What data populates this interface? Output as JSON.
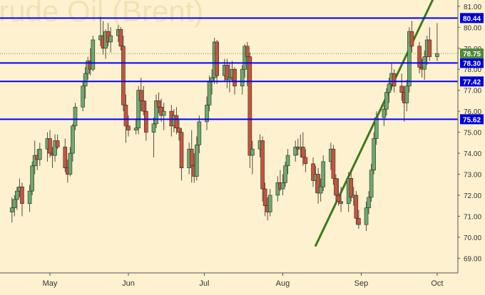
{
  "chart_data": {
    "type": "candlestick",
    "title": "Crude Oil (Brent)",
    "x_ticks": [
      "May",
      "Jun",
      "Jul",
      "Aug",
      "Sep",
      "Oct"
    ],
    "y_ticks": [
      "69.00",
      "70.00",
      "71.00",
      "72.00",
      "73.00",
      "74.00",
      "75.00",
      "76.00",
      "77.00",
      "78.00",
      "79.00",
      "80.00",
      "81.00"
    ],
    "ylim": [
      68.3,
      81.3
    ],
    "grid": false,
    "last_price": "78.75",
    "levels": [
      {
        "label": "80.44",
        "value": 80.44
      },
      {
        "label": "78.30",
        "value": 78.3
      },
      {
        "label": "77.42",
        "value": 77.42
      },
      {
        "label": "75.62",
        "value": 75.62
      }
    ],
    "trendlines": [
      {
        "from": [
          "Aug 14",
          69.6
        ],
        "to": [
          "Sep 30",
          81.5
        ]
      }
    ],
    "candles": [
      [
        "Apr 16",
        71.2,
        71.9,
        70.7,
        71.4
      ],
      [
        "Apr 17",
        71.4,
        72.0,
        71.0,
        71.8
      ],
      [
        "Apr 18",
        71.8,
        72.4,
        71.3,
        72.2
      ],
      [
        "Apr 19",
        72.2,
        72.8,
        71.9,
        72.4
      ],
      [
        "Apr 20",
        72.4,
        72.6,
        71.0,
        71.6
      ],
      [
        "Apr 23",
        71.6,
        72.5,
        71.2,
        72.2
      ],
      [
        "Apr 24",
        72.2,
        73.6,
        72.0,
        73.4
      ],
      [
        "Apr 25",
        73.4,
        74.6,
        73.0,
        73.9
      ],
      [
        "Apr 26",
        73.9,
        74.2,
        73.2,
        73.7
      ],
      [
        "Apr 27",
        73.7,
        74.5,
        73.4,
        74.2
      ],
      [
        "Apr 30",
        74.2,
        75.0,
        73.6,
        74.7
      ],
      [
        "May 1",
        74.7,
        75.1,
        73.8,
        74.0
      ],
      [
        "May 2",
        74.0,
        74.3,
        73.3,
        73.9
      ],
      [
        "May 3",
        73.9,
        74.9,
        73.6,
        74.6
      ],
      [
        "May 4",
        74.6,
        74.9,
        74.2,
        74.3
      ],
      [
        "May 7",
        74.3,
        74.7,
        73.1,
        73.3
      ],
      [
        "May 8",
        73.3,
        73.7,
        72.6,
        73.0
      ],
      [
        "May 9",
        73.0,
        74.3,
        72.9,
        74.0
      ],
      [
        "May 10",
        74.0,
        75.4,
        73.6,
        75.3
      ],
      [
        "May 11",
        75.3,
        76.4,
        75.1,
        76.2
      ],
      [
        "May 14",
        76.2,
        77.4,
        76.0,
        77.2
      ],
      [
        "May 15",
        77.2,
        78.1,
        76.6,
        77.8
      ],
      [
        "May 16",
        77.8,
        78.6,
        77.5,
        78.4
      ],
      [
        "May 17",
        78.4,
        79.0,
        77.7,
        78.0
      ],
      [
        "May 18",
        78.0,
        79.6,
        77.9,
        79.4
      ],
      [
        "May 21",
        79.4,
        80.5,
        79.1,
        79.6
      ],
      [
        "May 22",
        79.6,
        80.3,
        78.7,
        79.0
      ],
      [
        "May 23",
        79.0,
        79.9,
        78.5,
        79.8
      ],
      [
        "May 24",
        79.8,
        80.2,
        79.1,
        79.3
      ],
      [
        "May 25",
        79.3,
        80.0,
        78.8,
        79.6
      ],
      [
        "May 28",
        79.6,
        80.1,
        79.3,
        79.9
      ],
      [
        "May 29",
        79.9,
        80.0,
        78.9,
        79.1
      ],
      [
        "May 30",
        79.1,
        79.6,
        76.0,
        76.3
      ],
      [
        "May 31",
        76.3,
        76.8,
        74.5,
        75.3
      ],
      [
        "Jun 1",
        75.3,
        75.8,
        74.8,
        75.1
      ],
      [
        "Jun 4",
        75.1,
        75.6,
        74.9,
        75.2
      ],
      [
        "Jun 5",
        75.2,
        77.2,
        74.9,
        77.0
      ],
      [
        "Jun 6",
        77.0,
        77.6,
        76.0,
        76.5
      ],
      [
        "Jun 7",
        76.5,
        77.2,
        75.8,
        76.0
      ],
      [
        "Jun 8",
        76.0,
        76.5,
        74.6,
        75.0
      ],
      [
        "Jun 11",
        75.0,
        75.7,
        73.8,
        75.4
      ],
      [
        "Jun 12",
        75.4,
        76.8,
        75.2,
        76.5
      ],
      [
        "Jun 13",
        76.5,
        76.9,
        75.9,
        76.2
      ],
      [
        "Jun 14",
        76.2,
        76.6,
        75.5,
        75.8
      ],
      [
        "Jun 15",
        75.8,
        76.4,
        75.1,
        76.0
      ],
      [
        "Jun 18",
        76.0,
        76.3,
        74.8,
        75.3
      ],
      [
        "Jun 19",
        75.3,
        76.1,
        75.0,
        75.8
      ],
      [
        "Jun 20",
        75.8,
        76.2,
        74.9,
        75.2
      ],
      [
        "Jun 21",
        75.2,
        75.6,
        74.6,
        75.0
      ],
      [
        "Jun 22",
        75.0,
        75.2,
        72.7,
        73.3
      ],
      [
        "Jun 25",
        73.3,
        74.5,
        73.0,
        74.2
      ],
      [
        "Jun 26",
        74.2,
        75.1,
        72.6,
        73.4
      ],
      [
        "Jun 27",
        73.4,
        74.0,
        72.6,
        72.9
      ],
      [
        "Jun 28",
        72.9,
        74.8,
        72.7,
        74.4
      ],
      [
        "Jun 29",
        74.4,
        75.8,
        74.0,
        75.5
      ],
      [
        "Jul 2",
        75.5,
        76.7,
        75.1,
        76.3
      ],
      [
        "Jul 3",
        76.3,
        77.7,
        76.0,
        77.4
      ],
      [
        "Jul 4",
        77.4,
        78.0,
        76.8,
        77.6
      ],
      [
        "Jul 5",
        77.6,
        79.5,
        77.3,
        79.3
      ],
      [
        "Jul 6",
        79.3,
        79.4,
        77.3,
        77.7
      ],
      [
        "Jul 9",
        77.7,
        78.5,
        77.4,
        78.2
      ],
      [
        "Jul 10",
        78.2,
        78.5,
        77.1,
        77.5
      ],
      [
        "Jul 11",
        77.5,
        78.3,
        76.9,
        77.6
      ],
      [
        "Jul 12",
        77.6,
        78.4,
        77.4,
        78.0
      ],
      [
        "Jul 13",
        78.0,
        78.1,
        76.8,
        77.2
      ],
      [
        "Jul 16",
        77.2,
        78.2,
        76.8,
        78.0
      ],
      [
        "Jul 17",
        78.0,
        79.2,
        77.6,
        79.1
      ],
      [
        "Jul 18",
        79.1,
        79.3,
        77.2,
        78.6
      ],
      [
        "Jul 19",
        78.6,
        78.8,
        73.3,
        73.9
      ],
      [
        "Jul 20",
        73.9,
        74.6,
        73.0,
        74.2
      ],
      [
        "Jul 23",
        74.2,
        74.9,
        73.8,
        74.6
      ],
      [
        "Jul 24",
        74.6,
        74.8,
        71.7,
        72.3
      ],
      [
        "Jul 25",
        72.3,
        72.6,
        71.0,
        71.5
      ],
      [
        "Jul 26",
        71.5,
        71.9,
        70.8,
        71.2
      ],
      [
        "Jul 27",
        71.2,
        72.3,
        71.0,
        72.0
      ],
      [
        "Jul 30",
        72.0,
        72.9,
        71.7,
        72.6
      ],
      [
        "Jul 31",
        72.6,
        73.2,
        72.2,
        72.3
      ],
      [
        "Aug 1",
        72.3,
        73.0,
        72.0,
        72.6
      ],
      [
        "Aug 2",
        72.6,
        73.6,
        72.4,
        73.4
      ],
      [
        "Aug 3",
        73.4,
        74.2,
        73.0,
        73.9
      ],
      [
        "Aug 6",
        73.9,
        74.6,
        73.6,
        74.3
      ],
      [
        "Aug 7",
        74.3,
        74.7,
        73.9,
        74.2
      ],
      [
        "Aug 8",
        74.2,
        74.9,
        73.8,
        74.3
      ],
      [
        "Aug 9",
        74.3,
        75.0,
        73.4,
        73.8
      ],
      [
        "Aug 10",
        73.8,
        74.2,
        73.1,
        73.5
      ],
      [
        "Aug 13",
        73.5,
        73.8,
        72.4,
        72.7
      ],
      [
        "Aug 14",
        72.7,
        73.4,
        72.1,
        73.0
      ],
      [
        "Aug 15",
        73.0,
        73.3,
        71.6,
        72.1
      ],
      [
        "Aug 16",
        72.1,
        72.8,
        71.7,
        72.4
      ],
      [
        "Aug 17",
        72.4,
        73.9,
        72.2,
        73.6
      ],
      [
        "Aug 20",
        73.6,
        74.5,
        73.2,
        74.2
      ],
      [
        "Aug 21",
        74.2,
        74.4,
        72.5,
        72.8
      ],
      [
        "Aug 22",
        72.8,
        73.0,
        71.7,
        72.0
      ],
      [
        "Aug 23",
        72.0,
        72.8,
        71.5,
        71.7
      ],
      [
        "Aug 24",
        71.7,
        72.4,
        71.2,
        71.6
      ],
      [
        "Aug 27",
        71.6,
        73.1,
        71.2,
        72.8
      ],
      [
        "Aug 28",
        72.8,
        73.2,
        71.7,
        71.9
      ],
      [
        "Aug 29",
        71.9,
        72.4,
        71.5,
        72.0
      ],
      [
        "Aug 30",
        72.0,
        72.2,
        70.6,
        70.9
      ],
      [
        "Aug 31",
        70.9,
        71.3,
        70.4,
        70.6
      ],
      [
        "Sep 3",
        70.6,
        71.7,
        70.3,
        71.4
      ],
      [
        "Sep 4",
        71.4,
        72.2,
        71.1,
        71.9
      ],
      [
        "Sep 5",
        71.9,
        73.5,
        71.7,
        73.2
      ],
      [
        "Sep 6",
        73.2,
        75.0,
        73.0,
        74.7
      ],
      [
        "Sep 7",
        74.7,
        76.0,
        74.4,
        75.7
      ],
      [
        "Sep 10",
        75.7,
        76.3,
        75.3,
        76.1
      ],
      [
        "Sep 11",
        76.1,
        77.1,
        75.8,
        76.9
      ],
      [
        "Sep 12",
        76.9,
        77.6,
        76.4,
        77.3
      ],
      [
        "Sep 13",
        77.3,
        78.3,
        77.0,
        77.8
      ],
      [
        "Sep 14",
        77.8,
        78.0,
        76.9,
        77.2
      ],
      [
        "Sep 17",
        77.2,
        77.8,
        76.5,
        76.9
      ],
      [
        "Sep 18",
        76.9,
        77.2,
        75.5,
        76.4
      ],
      [
        "Sep 19",
        76.4,
        77.5,
        76.0,
        77.2
      ],
      [
        "Sep 20",
        77.2,
        80.0,
        76.9,
        79.8
      ],
      [
        "Sep 21",
        79.8,
        80.3,
        78.8,
        79.1
      ],
      [
        "Sep 24",
        79.1,
        79.3,
        77.8,
        78.1
      ],
      [
        "Sep 25",
        78.1,
        78.5,
        77.6,
        78.0
      ],
      [
        "Sep 26",
        78.0,
        78.9,
        77.5,
        78.6
      ],
      [
        "Sep 27",
        78.6,
        79.6,
        78.2,
        79.4
      ],
      [
        "Sep 28",
        79.4,
        80.0,
        78.4,
        78.6
      ],
      [
        "Oct 1",
        78.6,
        80.2,
        78.4,
        78.75
      ]
    ]
  }
}
